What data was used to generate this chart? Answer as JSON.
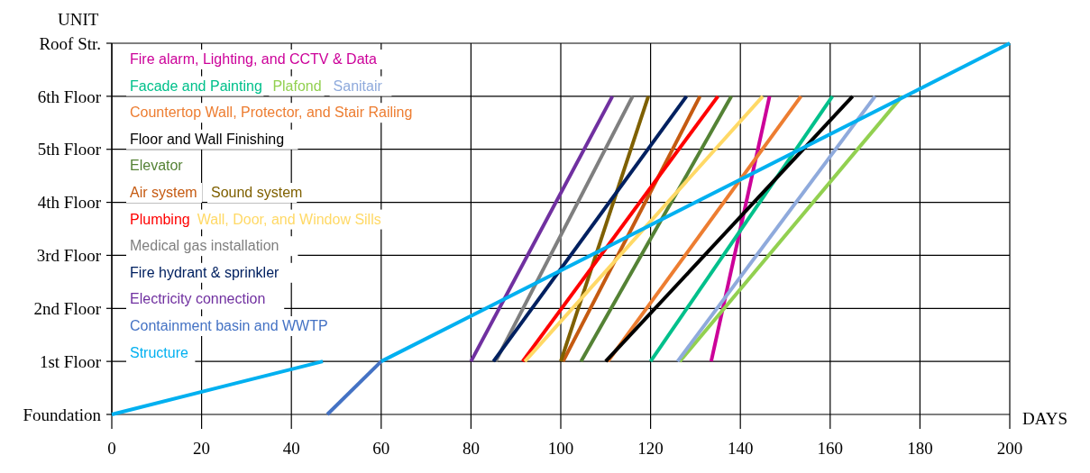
{
  "chart_data": {
    "type": "line",
    "xlabel": "DAYS",
    "ylabel": "UNIT",
    "xlim": [
      0,
      200
    ],
    "xticks": [
      0,
      20,
      40,
      60,
      80,
      100,
      120,
      140,
      160,
      180,
      200
    ],
    "ylim": [
      0,
      7
    ],
    "yticks": [
      {
        "value": 0,
        "label": "Foundation"
      },
      {
        "value": 1,
        "label": "1st Floor"
      },
      {
        "value": 2,
        "label": "2nd Floor"
      },
      {
        "value": 3,
        "label": "3rd Floor"
      },
      {
        "value": 4,
        "label": "4th Floor"
      },
      {
        "value": 5,
        "label": "5th Floor"
      },
      {
        "value": 6,
        "label": "6th Floor"
      },
      {
        "value": 7,
        "label": "Roof Str."
      }
    ],
    "grid": true,
    "legend": "top left",
    "marker": "none",
    "line_style": "solid",
    "series": [
      {
        "name": "Fire alarm, Lighting, and CCTV & Data",
        "color": "#cc0099",
        "x": [
          133.5,
          146.5
        ],
        "values": [
          1,
          6
        ]
      },
      {
        "name": "Facade and Painting",
        "color": "#00c08b",
        "x": [
          120,
          160.5
        ],
        "values": [
          1,
          6
        ]
      },
      {
        "name": "Plafond",
        "color": "#92d050",
        "x": [
          126.5,
          176
        ],
        "values": [
          1,
          6
        ]
      },
      {
        "name": "Sanitair",
        "color": "#8faadc",
        "x": [
          126,
          170
        ],
        "values": [
          1,
          6
        ]
      },
      {
        "name": "Countertop Wall, Protector, and Stair Railing",
        "color": "#ed7d31",
        "x": [
          110.5,
          153.5
        ],
        "values": [
          1,
          6
        ]
      },
      {
        "name": "Floor and Wall Finishing",
        "color": "#000000",
        "x": [
          110,
          165
        ],
        "values": [
          1,
          6
        ]
      },
      {
        "name": "Elevator",
        "color": "#548235",
        "x": [
          104.5,
          138
        ],
        "values": [
          1,
          6
        ]
      },
      {
        "name": "Air system",
        "color": "#c55a11",
        "x": [
          100.5,
          131
        ],
        "values": [
          1,
          6
        ]
      },
      {
        "name": "Sound system",
        "color": "#7f6000",
        "x": [
          100,
          119.5
        ],
        "values": [
          1,
          6
        ]
      },
      {
        "name": "Plumbing",
        "color": "#ff0000",
        "x": [
          91.5,
          135
        ],
        "values": [
          1,
          6
        ]
      },
      {
        "name": "Wall, Door, and Window Sills",
        "color": "#ffd966",
        "x": [
          92,
          145
        ],
        "values": [
          1,
          6
        ]
      },
      {
        "name": "Medical gas installation",
        "color": "#7f7f7f",
        "x": [
          85.5,
          116
        ],
        "values": [
          1,
          6
        ]
      },
      {
        "name": "Fire hydrant & sprinkler",
        "color": "#002060",
        "x": [
          85,
          128
        ],
        "values": [
          1,
          6
        ]
      },
      {
        "name": "Electricity connection",
        "color": "#7030a0",
        "x": [
          80,
          111.5
        ],
        "values": [
          1,
          6
        ]
      },
      {
        "name": "Containment basin and WWTP",
        "color": "#4472c4",
        "x": [
          48,
          60
        ],
        "values": [
          0,
          1
        ]
      },
      {
        "name": "Structure",
        "color": "#00b0f0",
        "x": [
          0,
          47,
          54,
          60,
          200
        ],
        "values": [
          0,
          1,
          null,
          1,
          7
        ]
      }
    ]
  }
}
